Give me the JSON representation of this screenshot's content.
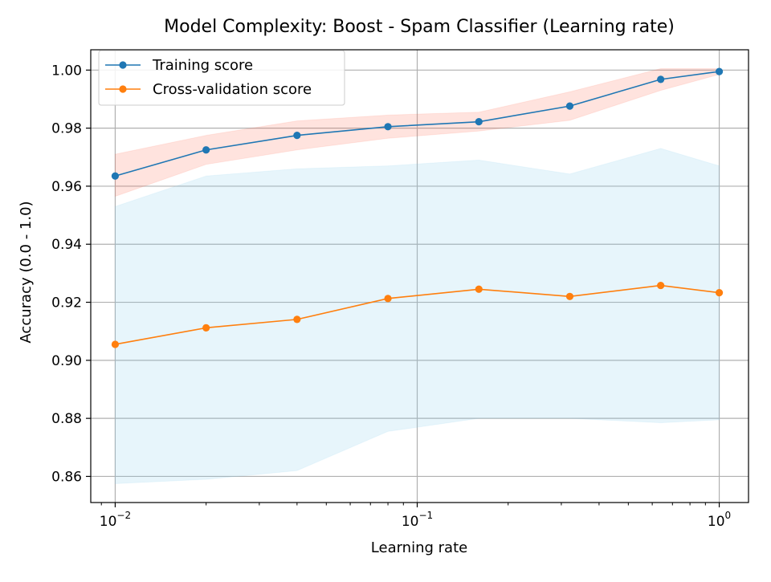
{
  "chart_data": {
    "type": "line",
    "title": "Model Complexity: Boost - Spam Classifier (Learning rate)",
    "xlabel": "Learning rate",
    "ylabel": "Accuracy (0.0 - 1.0)",
    "x_scale": "log",
    "xlim": [
      0.0083,
      1.25
    ],
    "ylim": [
      0.851,
      1.007
    ],
    "grid": true,
    "legend_position": "top-left",
    "x_ticks": [
      {
        "value": 0.01,
        "base": "10",
        "exp": "−2"
      },
      {
        "value": 0.1,
        "base": "10",
        "exp": "−1"
      },
      {
        "value": 1,
        "base": "10",
        "exp": "0"
      }
    ],
    "y_ticks": [
      {
        "value": 0.86,
        "label": "0.86"
      },
      {
        "value": 0.88,
        "label": "0.88"
      },
      {
        "value": 0.9,
        "label": "0.90"
      },
      {
        "value": 0.92,
        "label": "0.92"
      },
      {
        "value": 0.94,
        "label": "0.94"
      },
      {
        "value": 0.96,
        "label": "0.96"
      },
      {
        "value": 0.98,
        "label": "0.98"
      },
      {
        "value": 1.0,
        "label": "1.00"
      }
    ],
    "x": [
      0.01,
      0.02,
      0.04,
      0.08,
      0.16,
      0.32,
      0.64,
      1.0
    ],
    "series": [
      {
        "name": "Training score",
        "color": "#1f77b4",
        "band_color": "#ff6347",
        "values": [
          0.9635,
          0.9725,
          0.9775,
          0.9805,
          0.9822,
          0.9876,
          0.9968,
          0.9995
        ],
        "band_upper": [
          0.971,
          0.9775,
          0.9825,
          0.9845,
          0.9855,
          0.9925,
          1.0005,
          1.0005
        ],
        "band_lower": [
          0.9565,
          0.9675,
          0.9725,
          0.9765,
          0.979,
          0.9827,
          0.993,
          0.9985
        ]
      },
      {
        "name": "Cross-validation score",
        "color": "#ff7f0e",
        "band_color": "#87ceeb",
        "values": [
          0.9055,
          0.9112,
          0.9141,
          0.9213,
          0.9245,
          0.922,
          0.9258,
          0.9233
        ],
        "band_upper": [
          0.953,
          0.9635,
          0.966,
          0.967,
          0.969,
          0.9642,
          0.973,
          0.967
        ],
        "band_lower": [
          0.8575,
          0.859,
          0.862,
          0.8755,
          0.88,
          0.88,
          0.8785,
          0.8795
        ]
      }
    ]
  }
}
